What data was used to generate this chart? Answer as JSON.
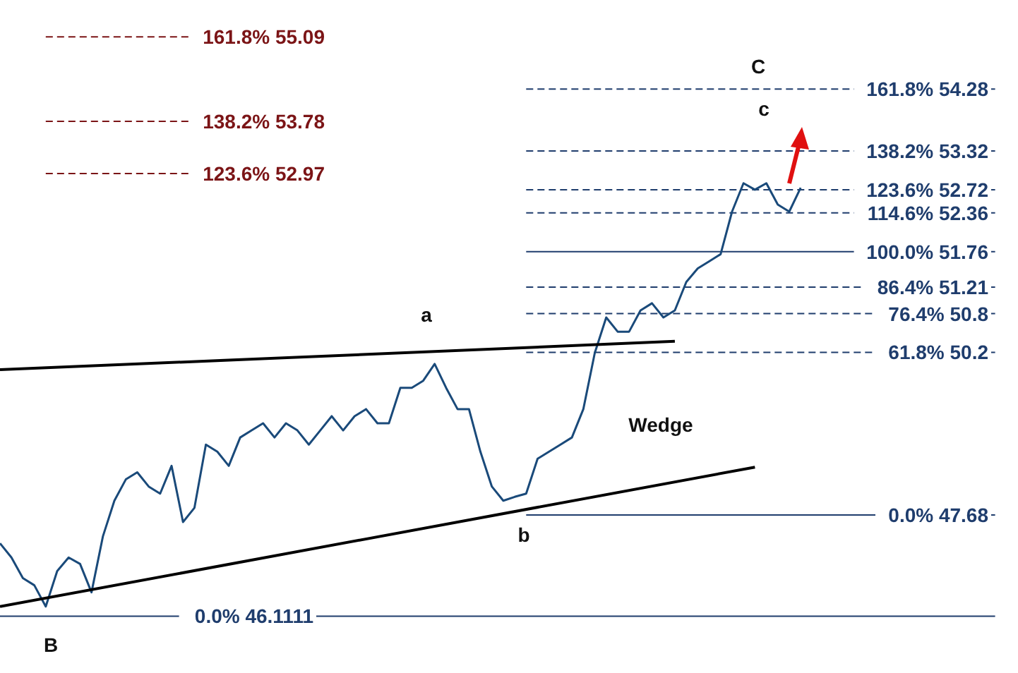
{
  "chart_data": {
    "type": "line",
    "categories": [
      null,
      null,
      null,
      null,
      null,
      null,
      null,
      null,
      null,
      null,
      null,
      null,
      null,
      null,
      null,
      null,
      null,
      null,
      null,
      null,
      null,
      null,
      null,
      null,
      null,
      null,
      null,
      null,
      null,
      null,
      null,
      null,
      null,
      null,
      null,
      null,
      null,
      null,
      null,
      null,
      null,
      null,
      null,
      null,
      null,
      null,
      null,
      null,
      null,
      null,
      null,
      null,
      null,
      null,
      null,
      null,
      null,
      null,
      null,
      null,
      null,
      null,
      null,
      null,
      null,
      null,
      null,
      null,
      null,
      null,
      null,
      null,
      null,
      null,
      null,
      null,
      null,
      null,
      null,
      null,
      null,
      null,
      null,
      null,
      null,
      null,
      null,
      null,
      null,
      null
    ],
    "series": [
      {
        "color": "#1a4a7a",
        "values": [
          47.24,
          47.02,
          46.7,
          46.59,
          46.26,
          46.81,
          47.02,
          46.92,
          46.48,
          47.35,
          47.9,
          48.23,
          48.34,
          48.12,
          48.01,
          48.44,
          47.57,
          47.79,
          48.77,
          48.66,
          48.44,
          48.88,
          48.99,
          49.1,
          48.88,
          49.1,
          48.99,
          48.77,
          48.99,
          49.21,
          48.99,
          49.21,
          49.32,
          49.1,
          49.1,
          49.65,
          49.65,
          49.76,
          50.02,
          49.65,
          49.32,
          49.32,
          48.66,
          48.12,
          47.9,
          47.96,
          48.01,
          48.55,
          48.66,
          48.77,
          48.88,
          49.32,
          50.19,
          50.74,
          50.52,
          50.52,
          50.85,
          50.96,
          50.74,
          50.85,
          51.29,
          51.5,
          51.61,
          51.72,
          52.38,
          52.82,
          52.72,
          52.82,
          52.49,
          52.38,
          52.75,
          null,
          null,
          null,
          null,
          null,
          null,
          null,
          null,
          null,
          null,
          null,
          null,
          null,
          null,
          null,
          null,
          null,
          null,
          null
        ]
      },
      {
        "color": "#000000",
        "values": [
          49.93,
          null,
          null,
          null,
          null,
          null,
          null,
          null,
          null,
          null,
          null,
          null,
          null,
          null,
          null,
          null,
          null,
          null,
          null,
          null,
          null,
          null,
          null,
          null,
          null,
          null,
          null,
          null,
          null,
          null,
          null,
          null,
          null,
          null,
          null,
          null,
          null,
          null,
          null,
          null,
          null,
          null,
          null,
          null,
          null,
          null,
          null,
          null,
          null,
          null,
          null,
          null,
          null,
          null,
          null,
          null,
          null,
          null,
          null,
          50.37,
          null,
          null,
          null,
          null,
          null,
          null,
          null,
          null,
          null,
          null,
          null,
          null,
          null,
          null,
          null,
          null,
          null,
          null,
          null,
          null,
          null,
          null,
          null,
          null,
          null,
          null,
          null,
          null,
          null,
          null
        ]
      },
      {
        "color": "#000000",
        "values": [
          46.26,
          null,
          null,
          null,
          null,
          null,
          null,
          null,
          null,
          null,
          null,
          null,
          null,
          null,
          null,
          null,
          null,
          null,
          null,
          null,
          null,
          null,
          null,
          null,
          null,
          null,
          null,
          null,
          null,
          null,
          null,
          null,
          null,
          null,
          null,
          null,
          null,
          null,
          null,
          null,
          null,
          null,
          null,
          null,
          null,
          null,
          null,
          null,
          null,
          null,
          null,
          null,
          null,
          null,
          null,
          null,
          null,
          null,
          null,
          null,
          null,
          null,
          null,
          null,
          null,
          null,
          48.42,
          null,
          null,
          null,
          null,
          null,
          null,
          null,
          null,
          null,
          null,
          null,
          null,
          null,
          null,
          null,
          null,
          null,
          null,
          null,
          null,
          null,
          null,
          null
        ]
      }
    ],
    "ylim": [
      45.23,
      55.66
    ],
    "tick_labels": false,
    "marker": "none",
    "line_style": "solid",
    "grid": false,
    "legend": false,
    "ref_lines": [
      {
        "axis": "y",
        "value": 55.09,
        "label": "161.8% 55.09",
        "color": "#7b1416",
        "line_style": "dashed"
      },
      {
        "axis": "y",
        "value": 53.78,
        "label": "138.2% 53.78",
        "color": "#7b1416",
        "line_style": "dashed"
      },
      {
        "axis": "y",
        "value": 52.97,
        "label": "123.6% 52.97",
        "color": "#7b1416",
        "line_style": "dashed"
      },
      {
        "axis": "y",
        "value": 46.1111,
        "label": "0.0% 46.1111",
        "color": "#1f3d6d",
        "line_style": "solid"
      },
      {
        "axis": "y",
        "value": 54.28,
        "label": "161.8% 54.28",
        "color": "#1f3d6d",
        "line_style": "dashed"
      },
      {
        "axis": "y",
        "value": 53.32,
        "label": "138.2% 53.32",
        "color": "#1f3d6d",
        "line_style": "dashed"
      },
      {
        "axis": "y",
        "value": 52.72,
        "label": "123.6% 52.72",
        "color": "#1f3d6d",
        "line_style": "dashed"
      },
      {
        "axis": "y",
        "value": 52.36,
        "label": "114.6% 52.36",
        "color": "#1f3d6d",
        "line_style": "dashed"
      },
      {
        "axis": "y",
        "value": 51.76,
        "label": "100.0% 51.76",
        "color": "#1f3d6d",
        "line_style": "solid"
      },
      {
        "axis": "y",
        "value": 51.21,
        "label": "86.4% 51.21",
        "color": "#1f3d6d",
        "line_style": "dashed"
      },
      {
        "axis": "y",
        "value": 50.8,
        "label": "76.4% 50.8",
        "color": "#1f3d6d",
        "line_style": "dashed"
      },
      {
        "axis": "y",
        "value": 50.2,
        "label": "61.8% 50.2",
        "color": "#1f3d6d",
        "line_style": "dashed"
      },
      {
        "axis": "y",
        "value": 47.68,
        "label": "0.0% 47.68",
        "color": "#1f3d6d",
        "line_style": "solid"
      }
    ],
    "annotations": [
      "a",
      "b",
      "c",
      "C",
      "B",
      "Wedge"
    ]
  }
}
